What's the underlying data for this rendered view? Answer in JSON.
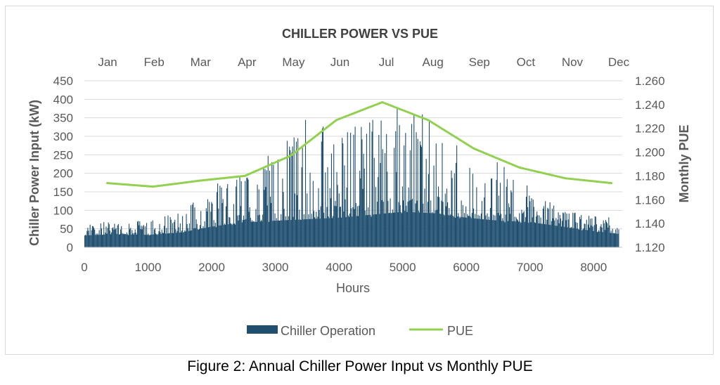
{
  "caption": "Figure 2: Annual Chiller Power Input vs Monthly PUE",
  "colors": {
    "bars": "#1f4e6e",
    "pue_line": "#92d050",
    "grid": "#d9d9d9",
    "text": "#595959"
  },
  "chart_data": {
    "type": "bar",
    "title": "CHILLER POWER VS PUE",
    "xlabel": "Hours",
    "ylabel": "Chiller Power Input (kW)",
    "y2label": "Monthly PUE",
    "xlim": [
      0,
      8450
    ],
    "ylim": [
      0,
      450
    ],
    "y2lim": [
      1.12,
      1.26
    ],
    "x_ticks": [
      "0",
      "1000",
      "2000",
      "3000",
      "4000",
      "5000",
      "6000",
      "7000",
      "8000"
    ],
    "y_ticks": [
      "0",
      "50",
      "100",
      "150",
      "200",
      "250",
      "300",
      "350",
      "400",
      "450"
    ],
    "y2_ticks": [
      "1.120",
      "1.140",
      "1.160",
      "1.180",
      "1.200",
      "1.220",
      "1.240",
      "1.260"
    ],
    "top_axis_labels": [
      "Jan",
      "Feb",
      "Mar",
      "Apr",
      "May",
      "Jun",
      "Jul",
      "Aug",
      "Sep",
      "Oct",
      "Nov",
      "Dec"
    ],
    "grid": true,
    "legend": {
      "position": "bottom",
      "entries": [
        "Chiller Operation",
        "PUE"
      ]
    },
    "series": [
      {
        "name": "Chiller Operation",
        "type": "bar",
        "description_x": "Hours",
        "envelope": {
          "hours": [
            0,
            500,
            1000,
            1500,
            2000,
            2500,
            3000,
            3500,
            4000,
            4500,
            5000,
            5500,
            6000,
            6500,
            7000,
            7500,
            8000,
            8400
          ],
          "base_kW": [
            40,
            45,
            42,
            50,
            70,
            85,
            90,
            95,
            100,
            110,
            120,
            115,
            100,
            90,
            85,
            70,
            55,
            45
          ],
          "peak_kW": [
            75,
            65,
            75,
            95,
            170,
            200,
            265,
            365,
            320,
            350,
            385,
            350,
            250,
            230,
            165,
            100,
            85,
            80
          ]
        }
      },
      {
        "name": "PUE",
        "type": "line",
        "x": [
          360,
          1080,
          1800,
          2520,
          3240,
          3960,
          4680,
          5400,
          6120,
          6840,
          7560,
          8280
        ],
        "values": [
          1.174,
          1.171,
          1.176,
          1.18,
          1.197,
          1.227,
          1.242,
          1.227,
          1.203,
          1.187,
          1.178,
          1.174
        ]
      }
    ]
  }
}
